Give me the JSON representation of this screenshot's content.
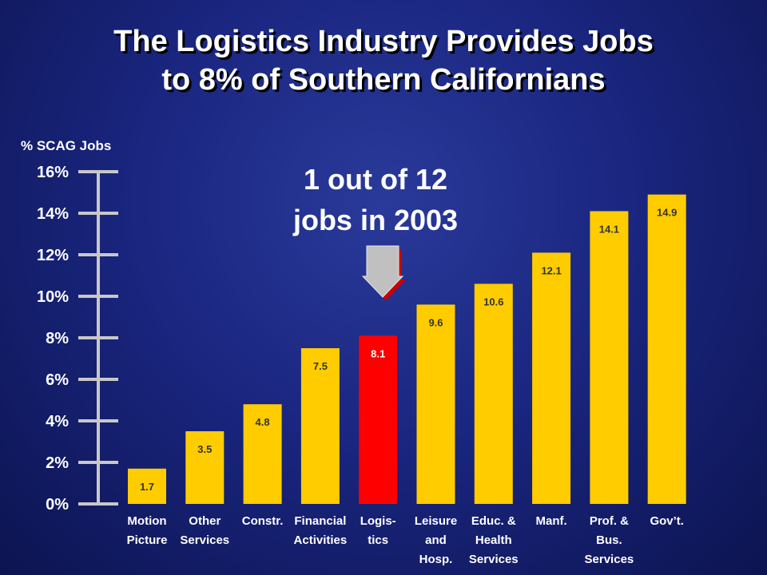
{
  "title_lines": [
    "The Logistics Industry Provides Jobs",
    "to 8% of Southern Californians"
  ],
  "annotation_lines": [
    "1 out of 12",
    "jobs in 2003"
  ],
  "colors": {
    "bar": "#FFCC00",
    "highlight_bar": "#FF0000",
    "axis": "#C8C8C8",
    "arrow": "#C0C0C0",
    "background": "#1A2680"
  },
  "chart_data": {
    "type": "bar",
    "ylabel": "% SCAG Jobs",
    "ylim": [
      0,
      16
    ],
    "yticks": [
      "0%",
      "2%",
      "4%",
      "6%",
      "8%",
      "10%",
      "12%",
      "14%",
      "16%"
    ],
    "grid": false,
    "highlight": "Logis- tics",
    "categories": [
      [
        "Motion",
        "Picture"
      ],
      [
        "Other",
        "Services"
      ],
      [
        "Constr."
      ],
      [
        "Financial",
        "Activities"
      ],
      [
        "Logis-",
        "tics"
      ],
      [
        "Leisure",
        "and",
        "Hosp."
      ],
      [
        "Educ. &",
        "Health",
        "Services"
      ],
      [
        "Manf."
      ],
      [
        "Prof. &",
        "Bus.",
        "Services"
      ],
      [
        "Gov’t."
      ]
    ],
    "values": [
      1.7,
      3.5,
      4.8,
      7.5,
      8.1,
      9.6,
      10.6,
      12.1,
      14.1,
      14.9
    ],
    "value_labels": [
      "1.7",
      "3.5",
      "4.8",
      "7.5",
      "8.1",
      "9.6",
      "10.6",
      "12.1",
      "14.1",
      "14.9"
    ]
  }
}
